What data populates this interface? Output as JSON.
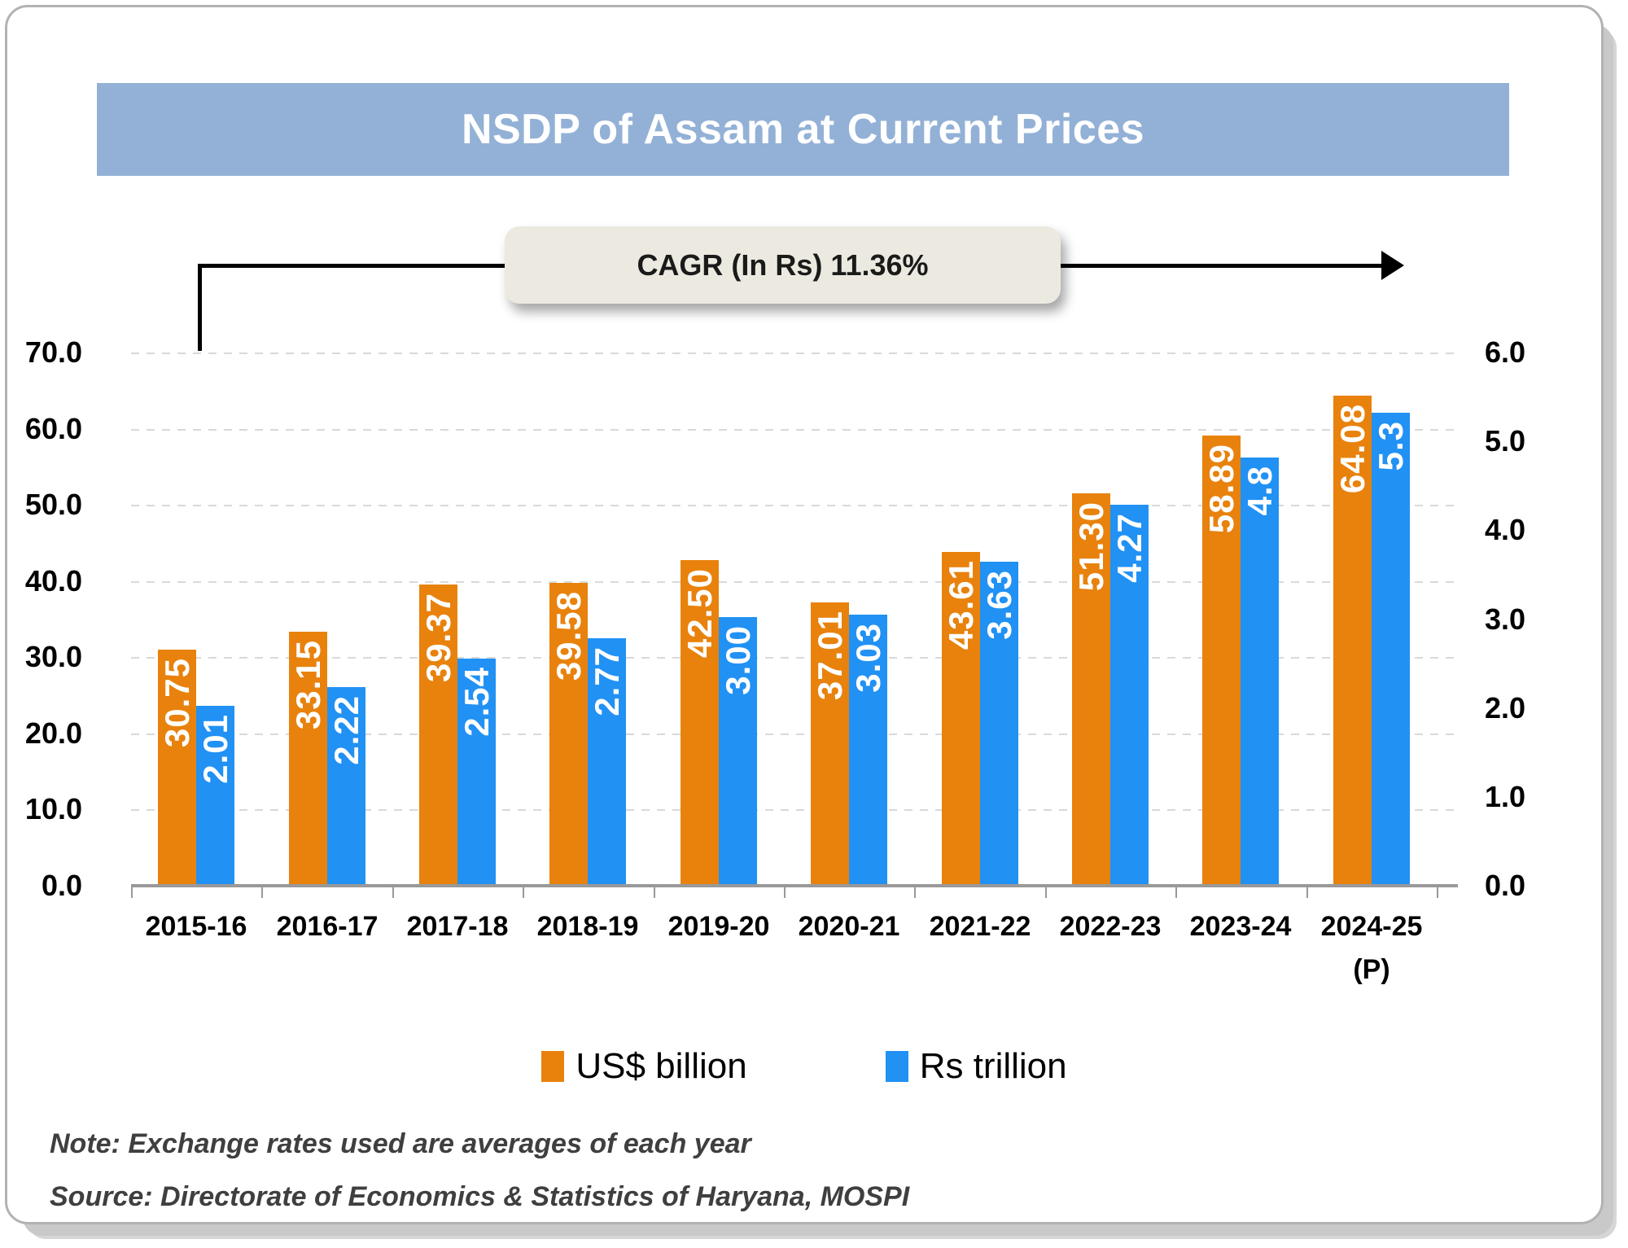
{
  "title": "NSDP of Assam at Current Prices",
  "cagr_label": "CAGR (In Rs) 11.36%",
  "chart_data": {
    "type": "bar",
    "title": "NSDP of Assam at Current Prices",
    "annotation": "CAGR (In Rs) 11.36%",
    "categories": [
      {
        "label": "2015-16"
      },
      {
        "label": "2016-17"
      },
      {
        "label": "2017-18"
      },
      {
        "label": "2018-19"
      },
      {
        "label": "2019-20"
      },
      {
        "label": "2020-21"
      },
      {
        "label": "2021-22"
      },
      {
        "label": "2022-23"
      },
      {
        "label": "2023-24"
      },
      {
        "label": "2024-25",
        "suffix": "(P)"
      }
    ],
    "series": [
      {
        "name": "US$ billion",
        "axis": "left",
        "color": "#E8820D",
        "values": [
          30.75,
          33.15,
          39.37,
          39.58,
          42.5,
          37.01,
          43.61,
          51.3,
          58.89,
          64.08
        ],
        "labels": [
          "30.75",
          "33.15",
          "39.37",
          "39.58",
          "42.50",
          "37.01",
          "43.61",
          "51.30",
          "58.89",
          "64.08"
        ]
      },
      {
        "name": "Rs trillion",
        "axis": "right",
        "color": "#2191F4",
        "values": [
          2.01,
          2.22,
          2.54,
          2.77,
          3.0,
          3.03,
          3.63,
          4.27,
          4.8,
          5.3
        ],
        "labels": [
          "2.01",
          "2.22",
          "2.54",
          "2.77",
          "3.00",
          "3.03",
          "3.63",
          "4.27",
          "4.8",
          "5.3"
        ]
      }
    ],
    "left_axis": {
      "min": 0,
      "max": 70,
      "step": 10,
      "ticks": [
        "70.0",
        "60.0",
        "50.0",
        "40.0",
        "30.0",
        "20.0",
        "10.0",
        "0.0"
      ]
    },
    "right_axis": {
      "min": 0,
      "max": 6,
      "step": 1,
      "ticks": [
        "6.0",
        "5.0",
        "4.0",
        "3.0",
        "2.0",
        "1.0",
        "0.0"
      ]
    },
    "grid": "horizontal-dashed",
    "legend_position": "bottom"
  },
  "legend": [
    {
      "label": "US$ billion",
      "color": "#E8820D"
    },
    {
      "label": "Rs trillion",
      "color": "#2191F4"
    }
  ],
  "notes": {
    "note": "Note: Exchange rates used are averages of each year",
    "source": "Source: Directorate of Economics & Statistics of Haryana, MOSPI"
  },
  "colors": {
    "banner_background": "#93B1D6",
    "banner_text": "#FFFFFF",
    "cagr_box_background": "#ECEAE0",
    "arrow": "#000000",
    "gridline": "#D9D9D9",
    "axis_line": "#999999"
  }
}
